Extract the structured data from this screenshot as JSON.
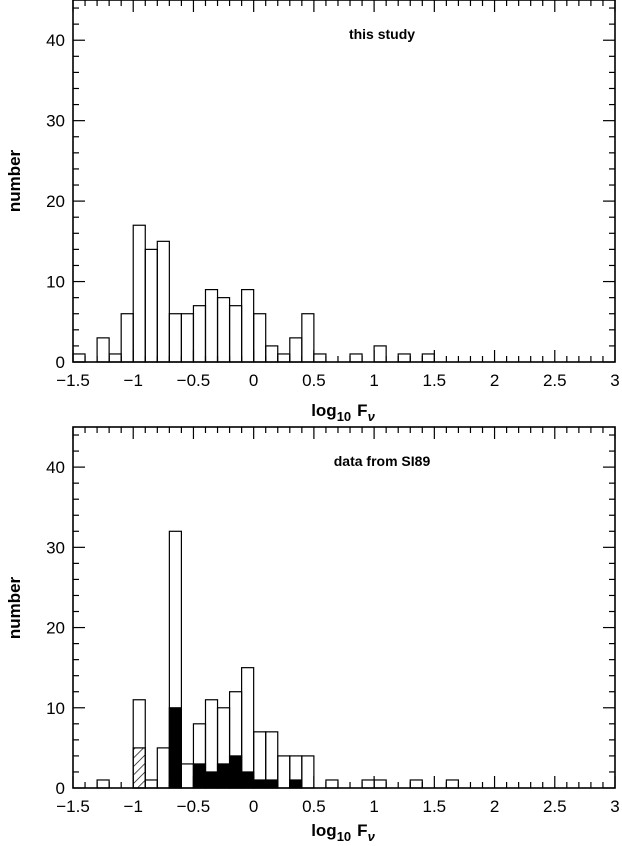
{
  "chart_data": [
    {
      "type": "bar",
      "annotation": "this study",
      "xlabel_main": "log",
      "xlabel_sub": "10",
      "xlabel_var": "F",
      "xlabel_var_sub": "ν",
      "ylabel": "number",
      "xlim": [
        -1.5,
        3
      ],
      "ylim": [
        0,
        45
      ],
      "xticks": [
        -1.5,
        -1,
        -0.5,
        0,
        0.5,
        1,
        1.5,
        2,
        2.5,
        3
      ],
      "xtick_labels": [
        "−1.5",
        "−1",
        "−0.5",
        "0",
        "0.5",
        "1",
        "1.5",
        "2",
        "2.5",
        "3"
      ],
      "yticks": [
        0,
        10,
        20,
        30,
        40
      ],
      "ytick_labels": [
        "0",
        "10",
        "20",
        "30",
        "40"
      ],
      "bin_width": 0.1,
      "series": [
        {
          "style": "open",
          "bins": [
            {
              "x0": -1.5,
              "value": 1
            },
            {
              "x0": -1.3,
              "value": 3
            },
            {
              "x0": -1.2,
              "value": 1
            },
            {
              "x0": -1.1,
              "value": 6
            },
            {
              "x0": -1.0,
              "value": 17
            },
            {
              "x0": -0.9,
              "value": 14
            },
            {
              "x0": -0.8,
              "value": 15
            },
            {
              "x0": -0.7,
              "value": 6
            },
            {
              "x0": -0.6,
              "value": 6
            },
            {
              "x0": -0.5,
              "value": 7
            },
            {
              "x0": -0.4,
              "value": 9
            },
            {
              "x0": -0.3,
              "value": 8
            },
            {
              "x0": -0.2,
              "value": 7
            },
            {
              "x0": -0.1,
              "value": 9
            },
            {
              "x0": 0.0,
              "value": 6
            },
            {
              "x0": 0.1,
              "value": 2
            },
            {
              "x0": 0.2,
              "value": 1
            },
            {
              "x0": 0.3,
              "value": 3
            },
            {
              "x0": 0.4,
              "value": 6
            },
            {
              "x0": 0.5,
              "value": 1
            },
            {
              "x0": 0.8,
              "value": 1
            },
            {
              "x0": 1.0,
              "value": 2
            },
            {
              "x0": 1.2,
              "value": 1
            },
            {
              "x0": 1.4,
              "value": 1
            }
          ]
        }
      ]
    },
    {
      "type": "bar",
      "annotation": "data from SI89",
      "xlabel_main": "log",
      "xlabel_sub": "10",
      "xlabel_var": "F",
      "xlabel_var_sub": "ν",
      "ylabel": "number",
      "xlim": [
        -1.5,
        3
      ],
      "ylim": [
        0,
        45
      ],
      "xticks": [
        -1.5,
        -1,
        -0.5,
        0,
        0.5,
        1,
        1.5,
        2,
        2.5,
        3
      ],
      "xtick_labels": [
        "−1.5",
        "−1",
        "−0.5",
        "0",
        "0.5",
        "1",
        "1.5",
        "2",
        "2.5",
        "3"
      ],
      "yticks": [
        0,
        10,
        20,
        30,
        40
      ],
      "ytick_labels": [
        "0",
        "10",
        "20",
        "30",
        "40"
      ],
      "bin_width": 0.1,
      "series": [
        {
          "style": "open",
          "bins": [
            {
              "x0": -1.3,
              "value": 1
            },
            {
              "x0": -1.0,
              "value": 11
            },
            {
              "x0": -0.9,
              "value": 1
            },
            {
              "x0": -0.8,
              "value": 5
            },
            {
              "x0": -0.7,
              "value": 32
            },
            {
              "x0": -0.6,
              "value": 3
            },
            {
              "x0": -0.5,
              "value": 8
            },
            {
              "x0": -0.4,
              "value": 11
            },
            {
              "x0": -0.3,
              "value": 10
            },
            {
              "x0": -0.2,
              "value": 12
            },
            {
              "x0": -0.1,
              "value": 15
            },
            {
              "x0": 0.0,
              "value": 7
            },
            {
              "x0": 0.1,
              "value": 7
            },
            {
              "x0": 0.2,
              "value": 4
            },
            {
              "x0": 0.3,
              "value": 4
            },
            {
              "x0": 0.4,
              "value": 4
            },
            {
              "x0": 0.6,
              "value": 1
            },
            {
              "x0": 0.9,
              "value": 1
            },
            {
              "x0": 1.0,
              "value": 1
            },
            {
              "x0": 1.3,
              "value": 1
            },
            {
              "x0": 1.6,
              "value": 1
            }
          ]
        },
        {
          "style": "filled",
          "bins": [
            {
              "x0": -0.7,
              "value": 10
            },
            {
              "x0": -0.5,
              "value": 3
            },
            {
              "x0": -0.4,
              "value": 2
            },
            {
              "x0": -0.3,
              "value": 3
            },
            {
              "x0": -0.2,
              "value": 4
            },
            {
              "x0": -0.1,
              "value": 2
            },
            {
              "x0": 0.0,
              "value": 1
            },
            {
              "x0": 0.1,
              "value": 1
            },
            {
              "x0": 0.3,
              "value": 1
            }
          ]
        },
        {
          "style": "hatched",
          "bins": [
            {
              "x0": -1.0,
              "value": 5
            }
          ]
        }
      ]
    }
  ]
}
